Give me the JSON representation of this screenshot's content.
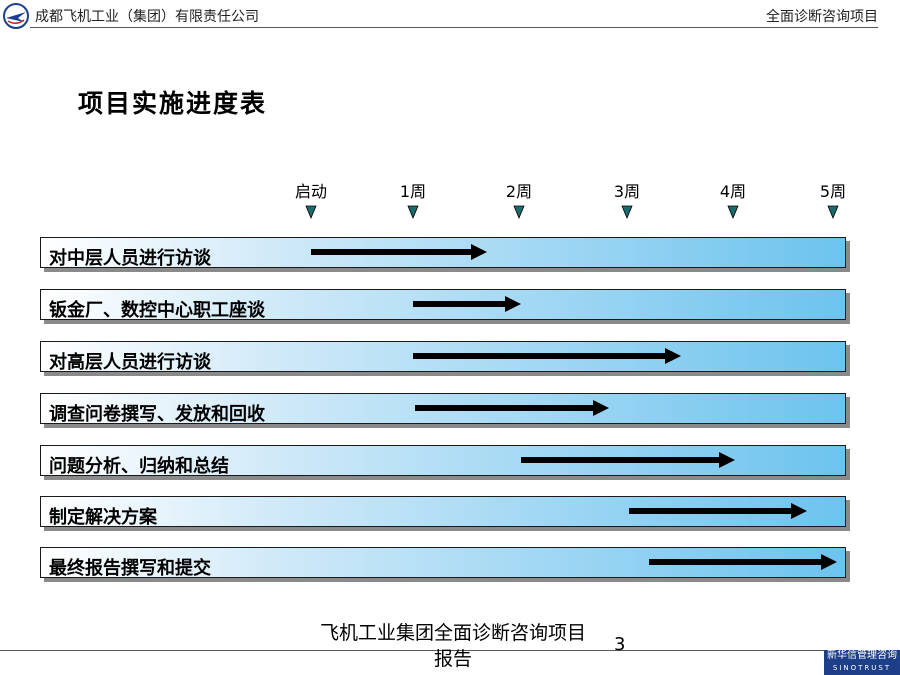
{
  "header": {
    "company": "成都飞机工业（集团）有限责任公司",
    "project": "全面诊断咨询项目"
  },
  "title": "项目实施进度表",
  "timeline": {
    "milestones": [
      "启动",
      "1周",
      "2周",
      "3周",
      "4周",
      "5周"
    ],
    "marker_color": "#1a6b6b"
  },
  "tasks": [
    {
      "label": "对中层人员进行访谈",
      "start": "启动",
      "end": "1.7周"
    },
    {
      "label": "钣金厂、数控中心职工座谈",
      "start": "1周",
      "end": "2周"
    },
    {
      "label": "对高层人员进行访谈",
      "start": "1周",
      "end": "3.5周"
    },
    {
      "label": "调查问卷撰写、发放和回收",
      "start": "1周",
      "end": "2.8周"
    },
    {
      "label": "问题分析、归纳和总结",
      "start": "2周",
      "end": "4周"
    },
    {
      "label": "制定解决方案",
      "start": "3周",
      "end": "4.7周"
    },
    {
      "label": "最终报告撰写和提交",
      "start": "3.2周",
      "end": "5周"
    }
  ],
  "footer": {
    "text": "飞机工业集团全面诊断咨询项目报告",
    "page_number": "3",
    "brand_name": "新华信管理咨询",
    "brand_sub": "SINOTRUST"
  },
  "colors": {
    "bar_gradient_end": "#6cc3ee",
    "arrow": "#000000",
    "brand": "#1d3f8a"
  }
}
